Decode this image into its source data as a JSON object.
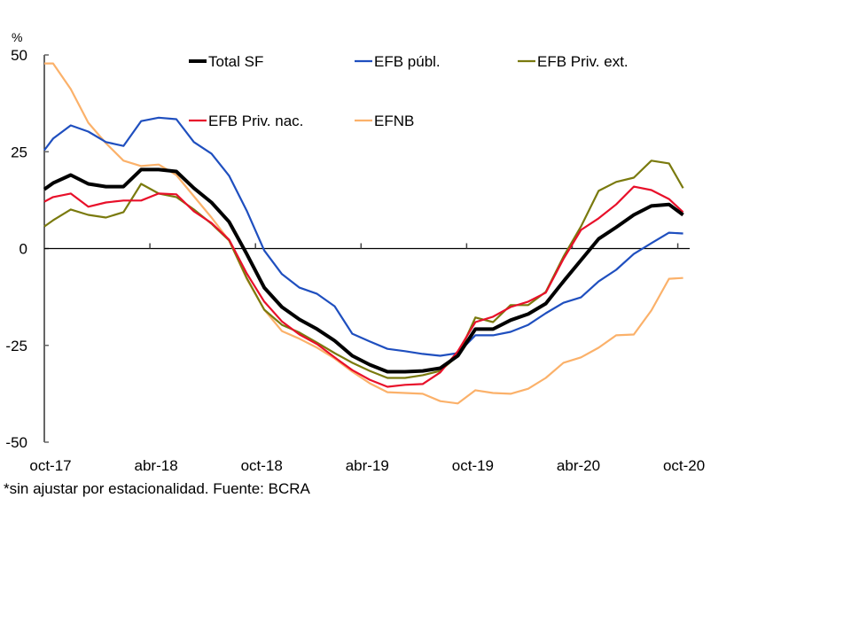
{
  "chart_data": {
    "type": "line",
    "title": "",
    "ylabel": "%",
    "xlabel": "",
    "ylim": [
      -50,
      50
    ],
    "yticks": [
      50,
      25,
      0,
      -25,
      -50
    ],
    "ytick_labels": [
      "50",
      "25",
      "0",
      "-25",
      "-50"
    ],
    "xlim_months": [
      0,
      36.8
    ],
    "xticks_months": [
      0,
      6,
      12,
      18,
      24,
      30,
      36
    ],
    "xtick_labels": [
      "oct-17",
      "abr-18",
      "oct-18",
      "abr-19",
      "oct-19",
      "abr-20",
      "oct-20"
    ],
    "grid": false,
    "legend_position": "top",
    "x_months": [
      0,
      0.5,
      1.5,
      2.5,
      3.5,
      4.5,
      5.5,
      6.5,
      7.5,
      8.5,
      9.5,
      10.5,
      11.5,
      12.5,
      13.5,
      14.5,
      15.5,
      16.5,
      17.5,
      18.5,
      19.5,
      20.5,
      21.5,
      22.5,
      23.5,
      24.5,
      25.5,
      26.5,
      27.5,
      28.5,
      29.5,
      30.5,
      31.5,
      32.5,
      33.5,
      34.5,
      35.5,
      36.3
    ],
    "series": [
      {
        "name": "Total SF",
        "color": "#000000",
        "bold": true,
        "values": [
          15.3,
          16.9,
          19.0,
          16.7,
          16.0,
          16.0,
          20.4,
          20.4,
          19.9,
          15.6,
          11.9,
          6.9,
          -1.4,
          -10.1,
          -15.1,
          -18.3,
          -20.8,
          -23.8,
          -27.7,
          -30.0,
          -31.8,
          -31.8,
          -31.6,
          -30.9,
          -27.7,
          -20.8,
          -20.8,
          -18.5,
          -16.9,
          -14.2,
          -8.5,
          -3.0,
          2.5,
          5.5,
          8.7,
          11.0,
          11.4,
          8.7
        ]
      },
      {
        "name": "EFB públ.",
        "color": "#1f4fbf",
        "bold": false,
        "values": [
          25.4,
          28.4,
          31.8,
          30.2,
          27.5,
          26.5,
          32.9,
          33.8,
          33.4,
          27.5,
          24.5,
          18.8,
          9.8,
          -0.5,
          -6.6,
          -10.1,
          -11.7,
          -14.9,
          -22.0,
          -24.0,
          -25.9,
          -26.5,
          -27.2,
          -27.7,
          -27.0,
          -22.4,
          -22.4,
          -21.5,
          -19.7,
          -16.7,
          -14.0,
          -12.6,
          -8.5,
          -5.5,
          -1.4,
          1.4,
          4.1,
          3.9
        ]
      },
      {
        "name": "EFB Priv. ext.",
        "color": "#7a7a0e",
        "bold": false,
        "values": [
          5.7,
          7.3,
          10.1,
          8.7,
          8.0,
          9.4,
          16.7,
          14.2,
          13.3,
          10.1,
          6.4,
          2.1,
          -7.6,
          -15.8,
          -19.7,
          -21.7,
          -24.3,
          -27.0,
          -29.5,
          -31.6,
          -33.4,
          -33.4,
          -32.7,
          -31.6,
          -27.7,
          -17.8,
          -19.0,
          -14.6,
          -14.6,
          -11.2,
          -2.1,
          5.7,
          14.9,
          17.2,
          18.3,
          22.7,
          22.0,
          15.6
        ]
      },
      {
        "name": "EFB Priv. nac.",
        "color": "#e8102a",
        "bold": false,
        "values": [
          12.1,
          13.3,
          14.2,
          10.8,
          11.9,
          12.4,
          12.4,
          14.2,
          14.0,
          9.6,
          6.6,
          2.3,
          -6.4,
          -13.7,
          -18.8,
          -22.2,
          -24.7,
          -28.1,
          -31.4,
          -33.9,
          -35.7,
          -35.2,
          -35.0,
          -32.0,
          -26.5,
          -19.0,
          -17.6,
          -15.1,
          -13.7,
          -11.4,
          -2.7,
          4.8,
          7.8,
          11.4,
          16.0,
          15.1,
          12.8,
          9.4
        ]
      },
      {
        "name": "EFNB",
        "color": "#fbb16a",
        "bold": false,
        "values": [
          47.8,
          47.8,
          41.2,
          32.5,
          27.2,
          22.7,
          21.3,
          21.7,
          19.0,
          13.5,
          8.0,
          2.1,
          -7.8,
          -15.8,
          -21.3,
          -23.3,
          -25.6,
          -28.4,
          -31.8,
          -34.8,
          -37.1,
          -37.3,
          -37.5,
          -39.4,
          -40.0,
          -36.6,
          -37.3,
          -37.5,
          -36.2,
          -33.4,
          -29.5,
          -28.1,
          -25.6,
          -22.4,
          -22.2,
          -16.0,
          -7.8,
          -7.6
        ]
      }
    ],
    "footnote": "*sin ajustar por estacionalidad. Fuente: BCRA"
  }
}
